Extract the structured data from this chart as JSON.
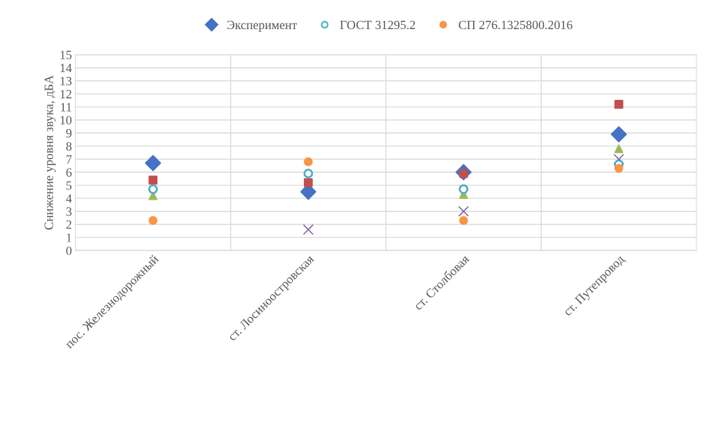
{
  "chart_data": {
    "type": "scatter",
    "ylabel": "Снижение уровня звука, дБА",
    "categories": [
      "пос. Железнодорожный",
      "ст. Лосиноостровская",
      "ст. Столбовая",
      "ст. Путепровод"
    ],
    "series": [
      {
        "name": "Эксперимент",
        "color": "#4472c4",
        "marker": "diamond",
        "values": [
          6.7,
          4.5,
          6.0,
          8.9
        ]
      },
      {
        "color": "#c0504d",
        "marker": "square",
        "values": [
          5.4,
          5.2,
          5.9,
          11.2
        ]
      },
      {
        "color": "#9bbb59",
        "marker": "triangle",
        "values": [
          4.2,
          null,
          4.3,
          7.8
        ]
      },
      {
        "color": "#8064a2",
        "marker": "cross",
        "values": [
          null,
          1.6,
          3.0,
          7.0
        ]
      },
      {
        "name": "ГОСТ 31295.2",
        "color": "#4bacc6",
        "marker": "circle",
        "values": [
          4.7,
          5.9,
          4.7,
          6.6
        ]
      },
      {
        "name": "СП 276.1325800.2016",
        "color": "#f79646",
        "marker": "circle",
        "values": [
          2.3,
          6.8,
          2.3,
          6.3
        ]
      }
    ],
    "ylim": [
      0,
      15
    ],
    "yticks": [
      0,
      1,
      2,
      3,
      4,
      5,
      6,
      7,
      8,
      9,
      10,
      11,
      12,
      13,
      14,
      15
    ],
    "grid": true,
    "legend": "top"
  }
}
